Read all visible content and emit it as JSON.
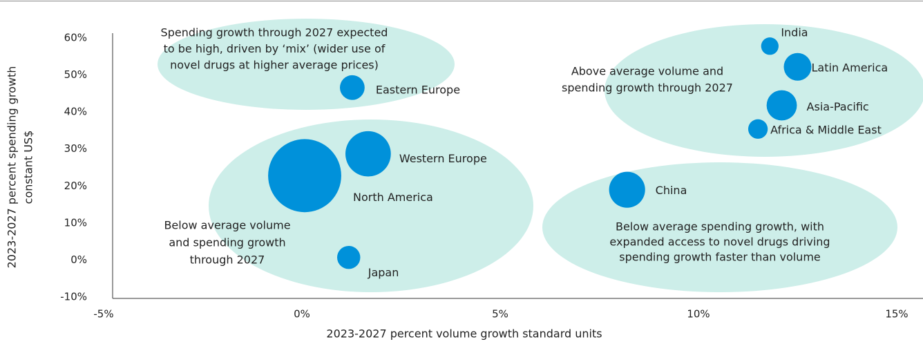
{
  "chart_data": {
    "type": "bubble",
    "xlabel": "2023-2027 percent volume growth standard units",
    "ylabel": [
      "2023-2027 percent spending growth",
      "constant US$"
    ],
    "labels": [
      "India",
      "Latin America",
      "Asia-Pacific",
      "Africa & Middle East",
      "China",
      "Eastern Europe",
      "Western Europe",
      "North America",
      "Japan"
    ],
    "x": [
      11.8,
      12.5,
      12.1,
      11.5,
      8.2,
      1.27,
      1.67,
      0.07,
      1.18
    ],
    "values": [
      57.8,
      52.2,
      41.8,
      35.4,
      19.0,
      46.6,
      28.7,
      22.8,
      0.7
    ],
    "sizes": [
      40,
      100,
      120,
      50,
      170,
      80,
      270,
      700,
      70
    ],
    "color": "#0091da",
    "xlim": [
      -5,
      15
    ],
    "xticks": [
      {
        "value": -5,
        "label": "-5%"
      },
      {
        "value": 0,
        "label": "0%"
      },
      {
        "value": 5,
        "label": "5%"
      },
      {
        "value": 10,
        "label": "10%"
      },
      {
        "value": 15,
        "label": "15%"
      }
    ],
    "ylim": [
      -10,
      60
    ],
    "yticks": [
      {
        "value": -10,
        "label": "-10%"
      },
      {
        "value": 0,
        "label": "0%"
      },
      {
        "value": 10,
        "label": "10%"
      },
      {
        "value": 20,
        "label": "20%"
      },
      {
        "value": 30,
        "label": "30%"
      },
      {
        "value": 40,
        "label": "40%"
      },
      {
        "value": 50,
        "label": "50%"
      },
      {
        "value": 60,
        "label": "60%"
      }
    ],
    "annotations": [
      [
        "Spending growth through 2027 expected",
        "to be high, driven by ‘mix’ (wider use of",
        "novel drugs at higher average prices)"
      ],
      [
        "Above average volume and",
        "spending growth through 2027"
      ],
      [
        "Below average volume",
        "and spending growth",
        "through 2027"
      ],
      [
        "Below average spending growth, with",
        "expanded access to novel drugs driving",
        "spending growth faster than volume"
      ]
    ]
  }
}
